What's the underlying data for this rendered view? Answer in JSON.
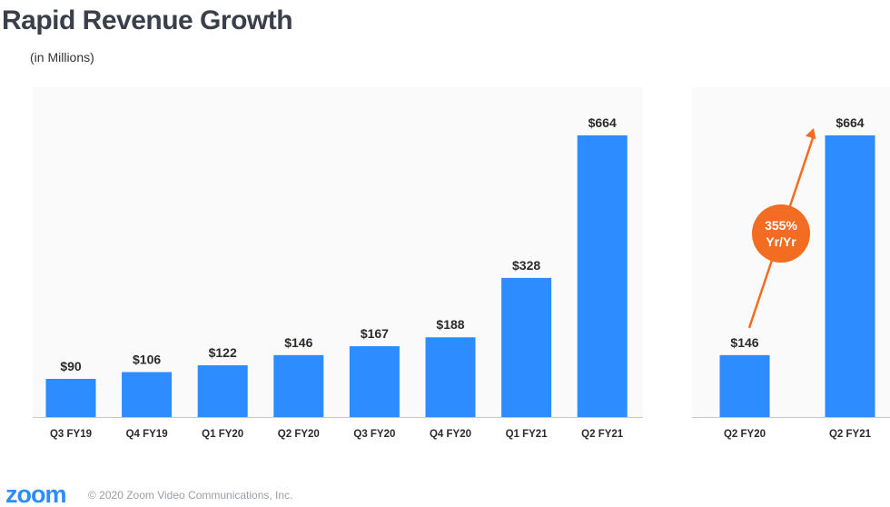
{
  "slide": {
    "title": "Rapid Revenue Growth",
    "subtitle": "(in Millions)",
    "footer": {
      "logo_text": "zoom",
      "copyright": "© 2020 Zoom Video Communications, Inc."
    }
  },
  "colors": {
    "bar": "#2d8cff",
    "arrow": "#f26c21",
    "badge": "#f26c21",
    "title": "#3a3f4a",
    "label": "#2b2b2b"
  },
  "chart_data": [
    {
      "type": "bar",
      "categories": [
        "Q3 FY19",
        "Q4 FY19",
        "Q1 FY20",
        "Q2 FY20",
        "Q3 FY20",
        "Q4 FY20",
        "Q1 FY21",
        "Q2 FY21"
      ],
      "values": [
        90,
        106,
        122,
        146,
        167,
        188,
        328,
        664
      ],
      "data_labels": [
        "$90",
        "$106",
        "$122",
        "$146",
        "$167",
        "$188",
        "$328",
        "$664"
      ],
      "ylim": [
        0,
        700
      ],
      "grid": false
    },
    {
      "type": "bar",
      "categories": [
        "Q2 FY20",
        "Q2 FY21"
      ],
      "values": [
        146,
        664
      ],
      "data_labels": [
        "$146",
        "$664"
      ],
      "ylim": [
        0,
        700
      ],
      "grid": false,
      "annotation": {
        "text_line1": "355%",
        "text_line2": "Yr/Yr",
        "from_category": "Q2 FY20",
        "to_category": "Q2 FY21"
      }
    }
  ]
}
